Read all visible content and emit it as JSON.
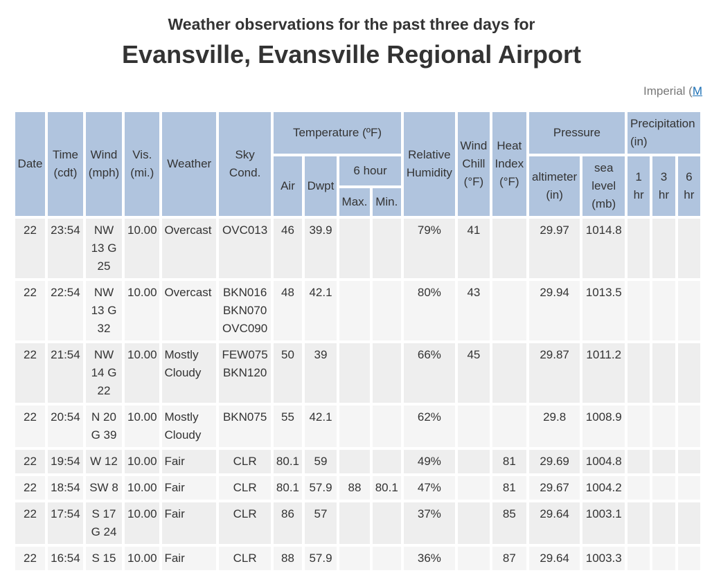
{
  "heading": {
    "subtitle": "Weather observations for the past three days for",
    "title": "Evansville, Evansville Regional Airport"
  },
  "units": {
    "label": "Imperial (",
    "link": "M"
  },
  "headers": {
    "date": "Date",
    "time": "Time (cdt)",
    "wind": "Wind (mph)",
    "vis": "Vis. (mi.)",
    "weather": "Weather",
    "sky": "Sky Cond.",
    "temperature": "Temperature (ºF)",
    "air": "Air",
    "dwpt": "Dwpt",
    "six_hour": "6 hour",
    "max": "Max.",
    "min": "Min.",
    "rh": "Relative Humidity",
    "wind_chill": "Wind Chill (°F)",
    "heat_index": "Heat Index (°F)",
    "pressure": "Pressure",
    "altimeter": "altimeter (in)",
    "sea_level": "sea level (mb)",
    "precip": "Precipitation (in)",
    "h1": "1 hr",
    "h3": "3 hr",
    "h6": "6 hr"
  },
  "rows": [
    {
      "date": "22",
      "time": "23:54",
      "wind": "NW 13 G 25",
      "vis": "10.00",
      "weather": "Overcast",
      "sky": "OVC013",
      "air": "46",
      "dwpt": "39.9",
      "max": "",
      "min": "",
      "rh": "79%",
      "chill": "41",
      "heat": "",
      "alt": "29.97",
      "sea": "1014.8"
    },
    {
      "date": "22",
      "time": "22:54",
      "wind": "NW 13 G 32",
      "vis": "10.00",
      "weather": "Overcast",
      "sky": "BKN016 BKN070 OVC090",
      "air": "48",
      "dwpt": "42.1",
      "max": "",
      "min": "",
      "rh": "80%",
      "chill": "43",
      "heat": "",
      "alt": "29.94",
      "sea": "1013.5"
    },
    {
      "date": "22",
      "time": "21:54",
      "wind": "NW 14 G 22",
      "vis": "10.00",
      "weather": "Mostly Cloudy",
      "sky": "FEW075 BKN120",
      "air": "50",
      "dwpt": "39",
      "max": "",
      "min": "",
      "rh": "66%",
      "chill": "45",
      "heat": "",
      "alt": "29.87",
      "sea": "1011.2"
    },
    {
      "date": "22",
      "time": "20:54",
      "wind": "N 20 G 39",
      "vis": "10.00",
      "weather": "Mostly Cloudy",
      "sky": "BKN075",
      "air": "55",
      "dwpt": "42.1",
      "max": "",
      "min": "",
      "rh": "62%",
      "chill": "",
      "heat": "",
      "alt": "29.8",
      "sea": "1008.9"
    },
    {
      "date": "22",
      "time": "19:54",
      "wind": "W 12",
      "vis": "10.00",
      "weather": "Fair",
      "sky": "CLR",
      "air": "80.1",
      "dwpt": "59",
      "max": "",
      "min": "",
      "rh": "49%",
      "chill": "",
      "heat": "81",
      "alt": "29.69",
      "sea": "1004.8"
    },
    {
      "date": "22",
      "time": "18:54",
      "wind": "SW 8",
      "vis": "10.00",
      "weather": "Fair",
      "sky": "CLR",
      "air": "80.1",
      "dwpt": "57.9",
      "max": "88",
      "min": "80.1",
      "rh": "47%",
      "chill": "",
      "heat": "81",
      "alt": "29.67",
      "sea": "1004.2"
    },
    {
      "date": "22",
      "time": "17:54",
      "wind": "S 17 G 24",
      "vis": "10.00",
      "weather": "Fair",
      "sky": "CLR",
      "air": "86",
      "dwpt": "57",
      "max": "",
      "min": "",
      "rh": "37%",
      "chill": "",
      "heat": "85",
      "alt": "29.64",
      "sea": "1003.1"
    },
    {
      "date": "22",
      "time": "16:54",
      "wind": "S 15",
      "vis": "10.00",
      "weather": "Fair",
      "sky": "CLR",
      "air": "88",
      "dwpt": "57.9",
      "max": "",
      "min": "",
      "rh": "36%",
      "chill": "",
      "heat": "87",
      "alt": "29.64",
      "sea": "1003.3"
    }
  ]
}
